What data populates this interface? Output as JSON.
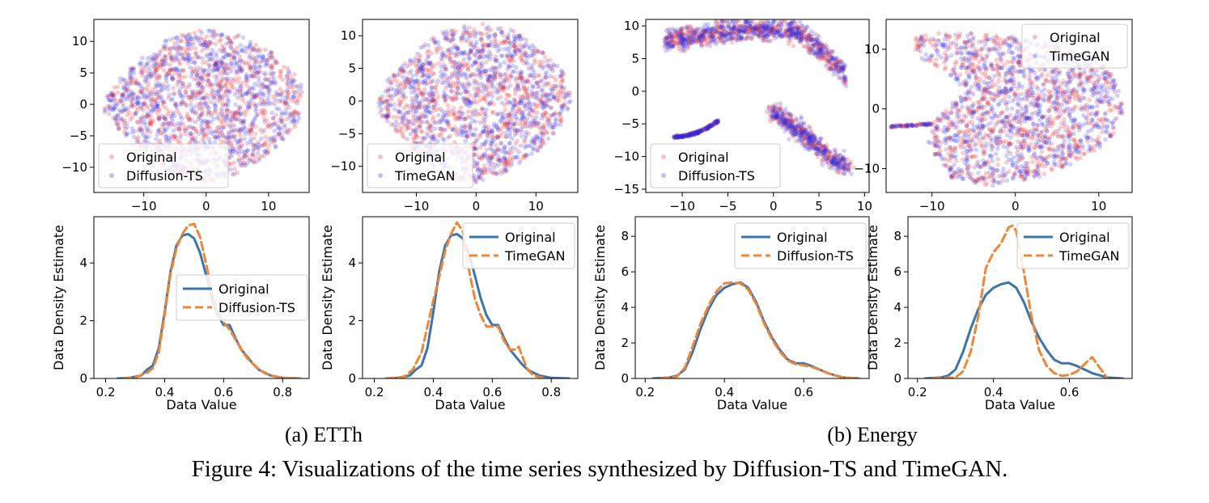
{
  "figure": {
    "caption": "Figure 4: Visualizations of the time series synthesized by Diffusion-TS and TimeGAN.",
    "subcaptions": [
      "(a) ETTh",
      "(b) Energy"
    ]
  },
  "colors": {
    "original_scatter": "#e8474c",
    "synthetic_scatter": "#2a2ae6",
    "original_line": "#3b75af",
    "synthetic_line": "#ef8636"
  },
  "chart_data": [
    {
      "type": "scatter",
      "group": "ETTh",
      "xlim": [
        -18,
        16.5
      ],
      "ylim": [
        -14,
        13.5
      ],
      "xticks": [
        -10,
        0,
        10
      ],
      "yticks": [
        -10,
        -5,
        0,
        5,
        10
      ],
      "legend": [
        "Original",
        "Diffusion-TS"
      ],
      "legend_position": "lower-left",
      "grid": false,
      "shape": "blob"
    },
    {
      "type": "scatter",
      "group": "ETTh",
      "xlim": [
        -19,
        17
      ],
      "ylim": [
        -14,
        12.5
      ],
      "xticks": [
        -10,
        0,
        10
      ],
      "yticks": [
        -10,
        -5,
        0,
        5,
        10
      ],
      "legend": [
        "Original",
        "TimeGAN"
      ],
      "legend_position": "lower-left",
      "grid": false,
      "shape": "blob"
    },
    {
      "type": "scatter",
      "group": "Energy",
      "xlim": [
        -14,
        10.5
      ],
      "ylim": [
        -15.5,
        11
      ],
      "xticks": [
        -10,
        -5,
        0,
        5,
        10
      ],
      "yticks": [
        -15,
        -10,
        -5,
        0,
        5,
        10
      ],
      "legend": [
        "Original",
        "Diffusion-TS"
      ],
      "legend_position": "lower-left",
      "grid": false,
      "shape": "arc"
    },
    {
      "type": "scatter",
      "group": "Energy",
      "xlim": [
        -15.5,
        14
      ],
      "ylim": [
        -14,
        15
      ],
      "xticks": [
        -10,
        0,
        10
      ],
      "yticks": [
        -10,
        0,
        10
      ],
      "legend": [
        "Original",
        "TimeGAN"
      ],
      "legend_position": "upper-right",
      "grid": false,
      "shape": "hook"
    },
    {
      "type": "line",
      "group": "ETTh",
      "xlabel": "Data Value",
      "ylabel": "Data Density Estimate",
      "xlim": [
        0.16,
        0.89
      ],
      "ylim": [
        0,
        5.6
      ],
      "xticks": [
        0.2,
        0.4,
        0.6,
        0.8
      ],
      "yticks": [
        0,
        2,
        4
      ],
      "legend_position": "center-right",
      "series": [
        {
          "name": "Original",
          "style": "solid",
          "x": [
            0.24,
            0.28,
            0.32,
            0.34,
            0.36,
            0.38,
            0.4,
            0.42,
            0.44,
            0.46,
            0.48,
            0.5,
            0.52,
            0.54,
            0.56,
            0.58,
            0.6,
            0.62,
            0.64,
            0.66,
            0.68,
            0.7,
            0.72,
            0.74,
            0.76,
            0.8,
            0.86
          ],
          "y": [
            0.0,
            0.02,
            0.1,
            0.3,
            0.45,
            1.05,
            2.3,
            3.7,
            4.6,
            4.95,
            5.0,
            4.85,
            4.35,
            3.6,
            2.8,
            2.2,
            1.85,
            1.85,
            1.4,
            1.0,
            0.75,
            0.5,
            0.3,
            0.2,
            0.1,
            0.02,
            0.0
          ]
        },
        {
          "name": "Diffusion-TS",
          "style": "dashed",
          "x": [
            0.26,
            0.3,
            0.34,
            0.36,
            0.38,
            0.4,
            0.42,
            0.44,
            0.46,
            0.48,
            0.5,
            0.52,
            0.54,
            0.56,
            0.58,
            0.6,
            0.62,
            0.64,
            0.66,
            0.68,
            0.7,
            0.72,
            0.74,
            0.76,
            0.8,
            0.86
          ],
          "y": [
            0.0,
            0.03,
            0.2,
            0.35,
            0.9,
            2.2,
            3.6,
            4.5,
            5.0,
            5.3,
            5.35,
            4.9,
            4.0,
            3.0,
            2.3,
            1.95,
            1.7,
            1.35,
            1.0,
            0.7,
            0.5,
            0.32,
            0.18,
            0.1,
            0.02,
            0.0
          ]
        }
      ]
    },
    {
      "type": "line",
      "group": "ETTh",
      "xlabel": "Data Value",
      "ylabel": "Data Density Estimate",
      "xlim": [
        0.16,
        0.89
      ],
      "ylim": [
        0,
        5.6
      ],
      "xticks": [
        0.2,
        0.4,
        0.6,
        0.8
      ],
      "yticks": [
        0,
        2,
        4
      ],
      "legend_position": "upper-right",
      "series": [
        {
          "name": "Original",
          "style": "solid",
          "x": [
            0.24,
            0.28,
            0.32,
            0.34,
            0.36,
            0.38,
            0.4,
            0.42,
            0.44,
            0.46,
            0.48,
            0.5,
            0.52,
            0.54,
            0.56,
            0.58,
            0.6,
            0.62,
            0.64,
            0.66,
            0.68,
            0.7,
            0.72,
            0.74,
            0.76,
            0.8,
            0.86
          ],
          "y": [
            0.0,
            0.02,
            0.1,
            0.3,
            0.45,
            1.05,
            2.3,
            3.7,
            4.6,
            4.95,
            5.0,
            4.85,
            4.35,
            3.6,
            2.8,
            2.2,
            1.85,
            1.85,
            1.4,
            1.0,
            0.75,
            0.5,
            0.3,
            0.2,
            0.1,
            0.02,
            0.0
          ]
        },
        {
          "name": "TimeGAN",
          "style": "dashed",
          "x": [
            0.24,
            0.3,
            0.33,
            0.36,
            0.38,
            0.4,
            0.42,
            0.44,
            0.46,
            0.48,
            0.5,
            0.52,
            0.54,
            0.56,
            0.58,
            0.6,
            0.62,
            0.64,
            0.66,
            0.68,
            0.69,
            0.7,
            0.72,
            0.74,
            0.78
          ],
          "y": [
            0.0,
            0.05,
            0.3,
            0.9,
            1.8,
            2.7,
            3.5,
            4.4,
            5.0,
            5.4,
            5.1,
            3.8,
            2.8,
            2.2,
            1.8,
            1.8,
            1.8,
            1.3,
            1.0,
            1.0,
            1.1,
            0.8,
            0.3,
            0.1,
            0.0
          ]
        }
      ]
    },
    {
      "type": "line",
      "group": "Energy",
      "xlabel": "Data Value",
      "ylabel": "Data Density Estimate",
      "xlim": [
        0.175,
        0.765
      ],
      "ylim": [
        0,
        9.1
      ],
      "xticks": [
        0.2,
        0.4,
        0.6
      ],
      "yticks": [
        0,
        2,
        4,
        6,
        8
      ],
      "legend_position": "upper-right",
      "series": [
        {
          "name": "Original",
          "style": "solid",
          "x": [
            0.22,
            0.26,
            0.28,
            0.3,
            0.32,
            0.34,
            0.36,
            0.38,
            0.4,
            0.42,
            0.44,
            0.46,
            0.48,
            0.5,
            0.52,
            0.54,
            0.56,
            0.58,
            0.6,
            0.62,
            0.64,
            0.66,
            0.7,
            0.74
          ],
          "y": [
            0.0,
            0.05,
            0.15,
            0.5,
            1.5,
            2.8,
            3.9,
            4.7,
            5.1,
            5.3,
            5.4,
            5.1,
            4.3,
            3.2,
            2.3,
            1.6,
            1.05,
            0.85,
            0.85,
            0.7,
            0.5,
            0.3,
            0.05,
            0.0
          ]
        },
        {
          "name": "Diffusion-TS",
          "style": "dashed",
          "x": [
            0.24,
            0.28,
            0.3,
            0.32,
            0.34,
            0.36,
            0.38,
            0.4,
            0.42,
            0.44,
            0.46,
            0.48,
            0.5,
            0.52,
            0.54,
            0.56,
            0.58,
            0.6,
            0.62,
            0.64,
            0.66,
            0.7,
            0.74
          ],
          "y": [
            0.0,
            0.1,
            0.6,
            1.8,
            3.1,
            4.1,
            4.9,
            5.35,
            5.4,
            5.35,
            5.0,
            4.2,
            3.1,
            2.2,
            1.5,
            1.0,
            0.8,
            0.75,
            0.65,
            0.5,
            0.3,
            0.05,
            0.0
          ]
        }
      ]
    },
    {
      "type": "line",
      "group": "Energy",
      "xlabel": "Data Value",
      "ylabel": "Data Density Estimate",
      "xlim": [
        0.175,
        0.765
      ],
      "ylim": [
        0,
        9.1
      ],
      "xticks": [
        0.2,
        0.4,
        0.6
      ],
      "yticks": [
        0,
        2,
        4,
        6,
        8
      ],
      "legend_position": "upper-right",
      "series": [
        {
          "name": "Original",
          "style": "solid",
          "x": [
            0.22,
            0.26,
            0.28,
            0.3,
            0.32,
            0.34,
            0.36,
            0.38,
            0.4,
            0.42,
            0.44,
            0.46,
            0.48,
            0.5,
            0.52,
            0.54,
            0.56,
            0.58,
            0.6,
            0.62,
            0.64,
            0.66,
            0.7,
            0.74
          ],
          "y": [
            0.0,
            0.05,
            0.15,
            0.5,
            1.5,
            2.8,
            3.9,
            4.7,
            5.1,
            5.3,
            5.4,
            5.1,
            4.3,
            3.2,
            2.3,
            1.6,
            1.05,
            0.85,
            0.85,
            0.7,
            0.5,
            0.3,
            0.05,
            0.0
          ]
        },
        {
          "name": "TimeGAN",
          "style": "dashed",
          "x": [
            0.24,
            0.3,
            0.32,
            0.34,
            0.36,
            0.38,
            0.4,
            0.42,
            0.44,
            0.45,
            0.46,
            0.48,
            0.5,
            0.52,
            0.54,
            0.56,
            0.58,
            0.6,
            0.62,
            0.64,
            0.66,
            0.68,
            0.7
          ],
          "y": [
            0.0,
            0.05,
            0.4,
            1.5,
            3.5,
            6.2,
            7.1,
            7.6,
            8.5,
            8.6,
            8.3,
            6.0,
            3.5,
            1.6,
            0.7,
            0.3,
            0.15,
            0.2,
            0.4,
            0.8,
            1.2,
            0.6,
            0.0
          ]
        }
      ]
    }
  ]
}
